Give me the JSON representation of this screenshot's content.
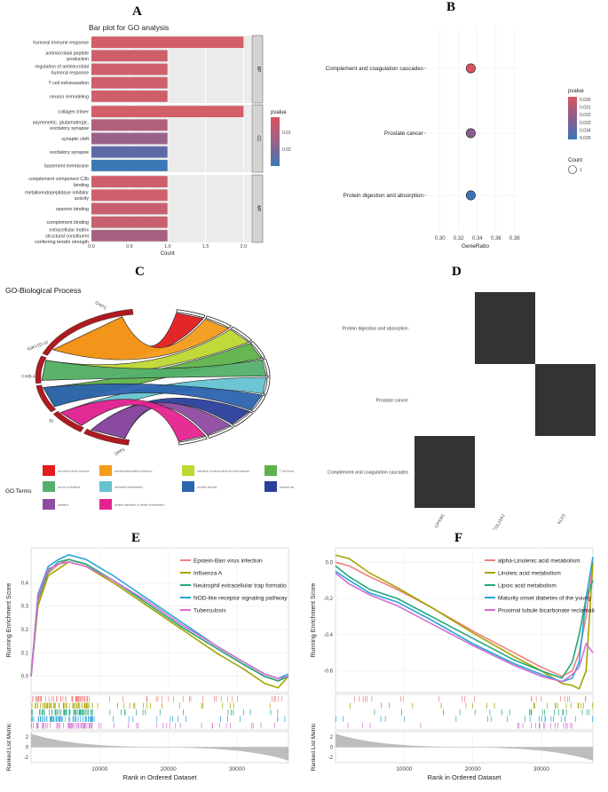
{
  "panel_labels": {
    "a": "A",
    "b": "B",
    "c": "C",
    "d": "D",
    "e": "E",
    "f": "F"
  },
  "chart_data": [
    {
      "id": "A",
      "type": "bar",
      "title": "Bar plot for GO analysis",
      "xlabel": "Count",
      "xlim": [
        0,
        2.1
      ],
      "xticks": [
        "0.0",
        "0.5",
        "1.0",
        "1.5",
        "2.0"
      ],
      "colorbar": {
        "title": "pvalue",
        "ticks": [
          "0.01",
          "0.02"
        ],
        "low": "#d9545e",
        "high": "#3a78b5"
      },
      "groups": [
        {
          "name": "BP",
          "categories": [
            "humoral immune response",
            "antimicrobial peptide production",
            "regulation of antimicrobial humoral response",
            "T cell extravasation",
            "neuron remodeling"
          ],
          "values": [
            2,
            1,
            1,
            1,
            1
          ],
          "colors": [
            "#d25e69",
            "#cf5f6b",
            "#cf5f6b",
            "#cf5f6b",
            "#cf5f6b"
          ]
        },
        {
          "name": "CC",
          "categories": [
            "collagen trimer",
            "asymmetric, glutamatergic, excitatory synapse",
            "synaptic cleft",
            "excitatory synapse",
            "basement membrane"
          ],
          "values": [
            2,
            1,
            1,
            1,
            1
          ],
          "colors": [
            "#d25e69",
            "#b1607b",
            "#9a6288",
            "#5d6aa6",
            "#3b78b6"
          ]
        },
        {
          "name": "MF",
          "categories": [
            "complement component C3b binding",
            "metalloendopeptidase inhibitor activity",
            "opsonin binding",
            "complement binding",
            "extracellular matrix structural constituent conferring tensile strength"
          ],
          "values": [
            1,
            1,
            1,
            1,
            1
          ],
          "colors": [
            "#cf5f6b",
            "#cf5f6b",
            "#c6606f",
            "#c6606f",
            "#a76180"
          ]
        }
      ]
    },
    {
      "id": "B",
      "type": "scatter",
      "xlabel": "GeneRatio",
      "xlim": [
        0.285,
        0.385
      ],
      "xticks": [
        0.3,
        0.32,
        0.34,
        0.36,
        0.38
      ],
      "categories": [
        "Complement and coagulation cascades",
        "Prostate cancer",
        "Protein digestion and absorption"
      ],
      "x": [
        0.333,
        0.333,
        0.333
      ],
      "pvalue": [
        0.03,
        0.033,
        0.035
      ],
      "colors": [
        "#d9545e",
        "#8a5d8e",
        "#3b74b5"
      ],
      "legend_pvalue": {
        "title": "pvalue",
        "ticks": [
          "0.030",
          "0.031",
          "0.032",
          "0.033",
          "0.034",
          "0.035"
        ]
      },
      "legend_count": {
        "title": "Count",
        "ticks": [
          "1"
        ]
      }
    },
    {
      "id": "C",
      "type": "chord",
      "title": "GO-Biological Process",
      "genes": [
        "CHIT1",
        "IGKV1D-12",
        "C1QL1",
        "IG",
        "SPP1"
      ],
      "legend_title": "GO Terms",
      "terms": [
        {
          "label": "humoral immune response",
          "color": "#e41a1c"
        },
        {
          "label": "antimicrobial peptide production",
          "color": "#f39b1a"
        },
        {
          "label": "regulation of antimicrobial humoral response",
          "color": "#bfd730"
        },
        {
          "label": "T cell extrav.",
          "color": "#5fb24b"
        },
        {
          "label": "neuron remodeling",
          "color": "#53b06a"
        },
        {
          "label": "neutrophil extravasation",
          "color": "#66c2d1"
        },
        {
          "label": "complex pruning",
          "color": "#2c64ae"
        },
        {
          "label": "synaptic sig",
          "color": "#2a3f9c"
        },
        {
          "label": "migration",
          "color": "#8e4ba0"
        },
        {
          "label": "positive regulation of cellular extravasation",
          "color": "#e5238f"
        }
      ]
    },
    {
      "id": "D",
      "type": "heatmap",
      "rows": [
        "Protein digestion and absorption",
        "Prostate cancer",
        "Complement and coagulation cascades"
      ],
      "cols": [
        "CPXM1",
        "COL15A1",
        "KLK3"
      ],
      "matrix": [
        [
          0,
          1,
          0
        ],
        [
          0,
          0,
          1
        ],
        [
          1,
          0,
          0
        ]
      ],
      "fill": "#333333"
    },
    {
      "id": "E",
      "type": "line",
      "ylabel": "Running Enrichment Score",
      "ylabel2": "Ranked List Metric",
      "xlabel": "Rank in Ordered Dataset",
      "xlim": [
        0,
        37500
      ],
      "xticks": [
        10000,
        20000,
        30000
      ],
      "ylim": [
        -0.07,
        0.55
      ],
      "yticks": [
        0.0,
        0.1,
        0.2,
        0.3,
        0.4
      ],
      "ylim2": [
        -3,
        3
      ],
      "yticks2": [
        -2,
        0,
        2
      ],
      "series": [
        {
          "name": "Epstein-Barr virus infection",
          "color": "#f08080",
          "x": [
            0,
            1000,
            2500,
            4000,
            5500,
            8000,
            12000,
            17000,
            22000,
            27000,
            31000,
            34000,
            36000,
            37500
          ],
          "y": [
            0,
            0.32,
            0.44,
            0.48,
            0.5,
            0.48,
            0.41,
            0.31,
            0.21,
            0.12,
            0.05,
            0.0,
            -0.02,
            0.0
          ]
        },
        {
          "name": "Influenza A",
          "color": "#a3a500",
          "x": [
            0,
            1000,
            2500,
            4000,
            5500,
            8000,
            12000,
            17000,
            22000,
            27000,
            31000,
            34000,
            36000,
            37500
          ],
          "y": [
            0,
            0.3,
            0.43,
            0.46,
            0.49,
            0.47,
            0.4,
            0.3,
            0.2,
            0.1,
            0.03,
            -0.03,
            -0.05,
            0.0
          ]
        },
        {
          "name": "Neutrophil extracellular trap formatio",
          "color": "#21a87a",
          "x": [
            0,
            1000,
            2500,
            4000,
            5500,
            8000,
            12000,
            17000,
            22000,
            27000,
            31000,
            34000,
            36000,
            37500
          ],
          "y": [
            0,
            0.33,
            0.45,
            0.49,
            0.5,
            0.48,
            0.41,
            0.31,
            0.21,
            0.12,
            0.05,
            0.0,
            -0.02,
            0.0
          ]
        },
        {
          "name": "NOD-like receptor signaling pathway",
          "color": "#29a3d6",
          "x": [
            0,
            1000,
            2500,
            4000,
            5500,
            8000,
            12000,
            17000,
            22000,
            27000,
            31000,
            34000,
            36000,
            37500
          ],
          "y": [
            0,
            0.35,
            0.47,
            0.5,
            0.52,
            0.5,
            0.43,
            0.33,
            0.23,
            0.13,
            0.06,
            0.01,
            -0.01,
            0.01
          ]
        },
        {
          "name": "Tuberculosis",
          "color": "#d36fd1",
          "x": [
            0,
            1000,
            2500,
            4000,
            5500,
            8000,
            12000,
            17000,
            22000,
            27000,
            31000,
            34000,
            36000,
            37500
          ],
          "y": [
            0,
            0.34,
            0.46,
            0.48,
            0.49,
            0.47,
            0.41,
            0.32,
            0.22,
            0.13,
            0.06,
            0.01,
            -0.01,
            0.0
          ]
        }
      ]
    },
    {
      "id": "F",
      "type": "line",
      "ylabel": "Running Enrichment Score",
      "ylabel2": "Ranked List Metric",
      "xlabel": "Rank in Ordered Dataset",
      "xlim": [
        0,
        37500
      ],
      "xticks": [
        10000,
        20000,
        30000
      ],
      "ylim": [
        -0.72,
        0.08
      ],
      "yticks": [
        0.0,
        -0.2,
        -0.4,
        -0.6
      ],
      "ylim2": [
        -3,
        3
      ],
      "yticks2": [
        -2,
        0,
        2
      ],
      "series": [
        {
          "name": "alpha-Linolenic acid metabolism",
          "color": "#f08080",
          "x": [
            0,
            2000,
            5000,
            9000,
            14000,
            20000,
            26000,
            30000,
            33000,
            34500,
            35500,
            36500,
            37500
          ],
          "y": [
            0,
            -0.02,
            -0.08,
            -0.15,
            -0.25,
            -0.38,
            -0.5,
            -0.58,
            -0.63,
            -0.6,
            -0.5,
            -0.3,
            0.0
          ]
        },
        {
          "name": "Linoleic acid metabolism",
          "color": "#a3a500",
          "x": [
            0,
            2000,
            5000,
            9000,
            14000,
            20000,
            26000,
            30000,
            33000,
            34500,
            35500,
            36500,
            37500
          ],
          "y": [
            0.04,
            0.02,
            -0.06,
            -0.14,
            -0.25,
            -0.39,
            -0.52,
            -0.6,
            -0.67,
            -0.68,
            -0.7,
            -0.6,
            0.0
          ]
        },
        {
          "name": "Lipoic acid metabolism",
          "color": "#21a87a",
          "x": [
            0,
            2000,
            5000,
            9000,
            14000,
            20000,
            26000,
            30000,
            33000,
            34500,
            35500,
            36500,
            37500
          ],
          "y": [
            -0.02,
            -0.08,
            -0.15,
            -0.2,
            -0.3,
            -0.42,
            -0.54,
            -0.6,
            -0.64,
            -0.55,
            -0.4,
            -0.2,
            -0.1
          ]
        },
        {
          "name": "Maturity onset diabetes of the young",
          "color": "#29a3d6",
          "x": [
            0,
            2000,
            5000,
            9000,
            14000,
            20000,
            26000,
            30000,
            33000,
            34500,
            35500,
            36500,
            37500
          ],
          "y": [
            -0.05,
            -0.1,
            -0.17,
            -0.22,
            -0.32,
            -0.45,
            -0.56,
            -0.62,
            -0.66,
            -0.64,
            -0.55,
            -0.2,
            0.03
          ]
        },
        {
          "name": "Proximal tubule bicarbonate reclamati",
          "color": "#d36fd1",
          "x": [
            0,
            2000,
            5000,
            9000,
            14000,
            20000,
            26000,
            30000,
            33000,
            34500,
            35500,
            36500,
            37500
          ],
          "y": [
            -0.06,
            -0.12,
            -0.18,
            -0.24,
            -0.34,
            -0.46,
            -0.57,
            -0.63,
            -0.66,
            -0.62,
            -0.58,
            -0.45,
            -0.5
          ]
        }
      ]
    }
  ]
}
